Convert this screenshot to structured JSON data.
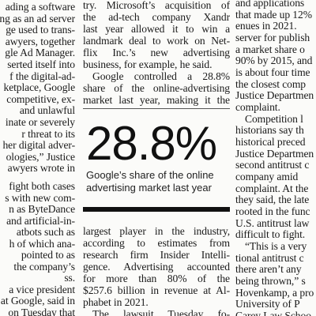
{
  "left_column": {
    "top": [
      "ading a software",
      "ing as an ad server",
      "ge used to trans-",
      "awyers, together",
      "gle Ad Manager.",
      "serted itself into",
      "f the digital-ad-",
      "ketplace, Google",
      "competitive, ex-",
      "and unlawful",
      "inate or severely",
      "r threat to its",
      "her digital adver-",
      "ologies,” Justice",
      "awyers wrote in"
    ],
    "bottom": [
      "fight both cases",
      "s with new com-",
      "n as ByteDance",
      "and artificial-in-",
      "atbots such as",
      "h of which ana-",
      "pointed to as",
      "the company’s",
      "ss.",
      "a vice president",
      "at Google, said in",
      "on Tuesday that"
    ]
  },
  "middle_column": {
    "top": [
      "try. Microsoft’s acquisition of",
      "the ad-tech company Xandr",
      "last year allowed it to win a",
      "landmark deal to work on Net-",
      "flix Inc.’s new advertising",
      "business, for example, he said.",
      "Google controlled a 28.8%",
      "share of the online-advertising",
      "market last year, making it the"
    ],
    "pull_quote": {
      "figure": "28.8%",
      "caption": [
        "Google’s share of the online",
        "advertising market last year"
      ]
    },
    "bottom": [
      "largest player in the industry,",
      "according to estimates from",
      "research firm Insider Intelli-",
      "gence. Advertising accounted",
      "for more than 80% of the",
      "$257.6 billion in revenue at Al-",
      "phabet in 2021.",
      "The lawsuit Tuesday fo-"
    ]
  },
  "right_column": [
    "and applications",
    "that made up 12%",
    "enues in 2021.",
    "server for publish",
    "a market share o",
    "90% by 2015, and",
    "is about four time",
    "the closest comp",
    "Justice Departmen",
    "complaint.",
    "Competition l",
    "historians say th",
    "historical preced",
    "Justice Departmen",
    "second antitrust c",
    "company amid",
    "complaint. At the",
    "they said, the late",
    "rooted in the func",
    "U.S. antitrust law",
    "difficult to fight.",
    "“This is a very",
    "tional antitrust c",
    "there aren’t any",
    "being thrown,” s",
    "Hovenkamp, a pro",
    "University of P",
    "Carey Law Schoo"
  ]
}
